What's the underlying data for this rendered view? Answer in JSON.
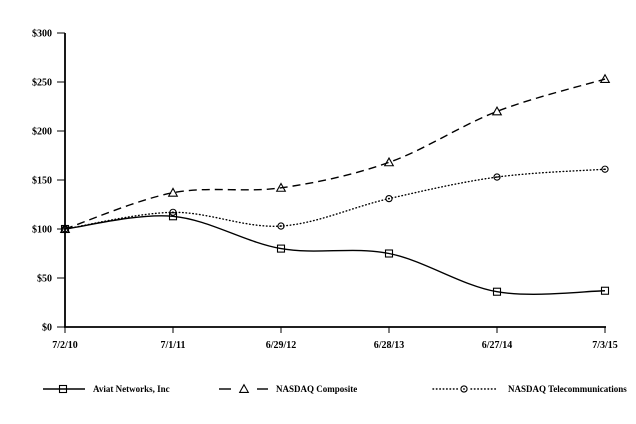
{
  "chart_data": {
    "type": "line",
    "title": "",
    "xlabel": "",
    "ylabel": "",
    "x_labels": [
      "7/2/10",
      "7/1/11",
      "6/29/12",
      "6/28/13",
      "6/27/14",
      "7/3/15"
    ],
    "y_axis_ticks": [
      {
        "value": 0,
        "label": "$0"
      },
      {
        "value": 50,
        "label": "$50"
      },
      {
        "value": 100,
        "label": "$100"
      },
      {
        "value": 150,
        "label": "$150"
      },
      {
        "value": 200,
        "label": "$200"
      },
      {
        "value": 250,
        "label": "$250"
      },
      {
        "value": 300,
        "label": "$300"
      }
    ],
    "ylim": [
      0,
      300
    ],
    "grid": false,
    "legend_position": "bottom",
    "line_color": "#000000",
    "background_color": "#ffffff",
    "series": [
      {
        "name": "Aviat Networks, Inc",
        "line_style": "solid",
        "marker": "square",
        "values": [
          100,
          113,
          80,
          75,
          36,
          37
        ]
      },
      {
        "name": "NASDAQ Composite",
        "line_style": "dashed",
        "marker": "triangle",
        "values": [
          100,
          137,
          142,
          168,
          220,
          253
        ]
      },
      {
        "name": "NASDAQ Telecommunications",
        "line_style": "dotted",
        "marker": "circle",
        "values": [
          100,
          117,
          103,
          131,
          153,
          161
        ]
      }
    ]
  }
}
